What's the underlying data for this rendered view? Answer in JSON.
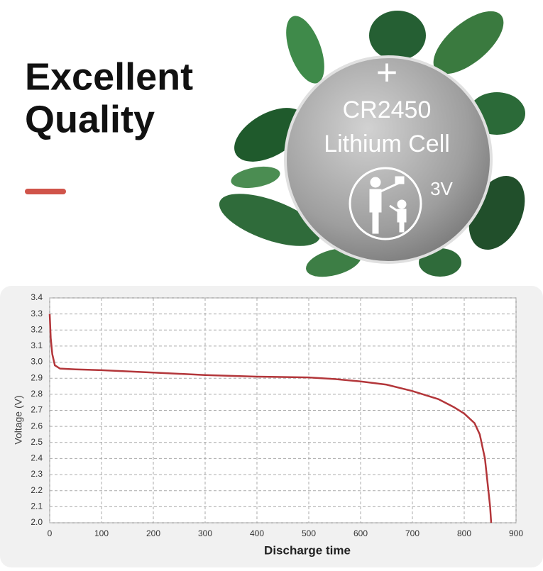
{
  "headline": {
    "line1": "Excellent",
    "line2": "Quality"
  },
  "battery": {
    "polarity": "+",
    "model": "CR2450",
    "kind": "Lithium Cell",
    "voltage": "3V"
  },
  "chart_data": {
    "type": "line",
    "x": [
      0,
      2,
      5,
      10,
      20,
      50,
      100,
      200,
      300,
      400,
      500,
      550,
      600,
      650,
      700,
      750,
      780,
      800,
      820,
      830,
      840,
      845,
      850,
      852
    ],
    "values": [
      3.3,
      3.15,
      3.05,
      2.98,
      2.96,
      2.955,
      2.95,
      2.935,
      2.92,
      2.91,
      2.905,
      2.895,
      2.88,
      2.86,
      2.82,
      2.77,
      2.72,
      2.68,
      2.62,
      2.55,
      2.4,
      2.25,
      2.1,
      2.0
    ],
    "color": "#b3363a",
    "xlabel": "Discharge time",
    "ylabel": "Voltage (V)",
    "xlim": [
      0,
      900
    ],
    "xticks": [
      0,
      100,
      200,
      300,
      400,
      500,
      600,
      700,
      800,
      900
    ],
    "ylim": [
      2.0,
      3.4
    ],
    "yticks": [
      {
        "value": 2.0,
        "label": "2.0"
      },
      2.1,
      2.2,
      2.3,
      2.4,
      2.5,
      2.6,
      2.7,
      2.8,
      2.9,
      {
        "value": 3.0,
        "label": "3.0"
      },
      3.1,
      3.2,
      3.3,
      3.4
    ],
    "grid": true
  }
}
